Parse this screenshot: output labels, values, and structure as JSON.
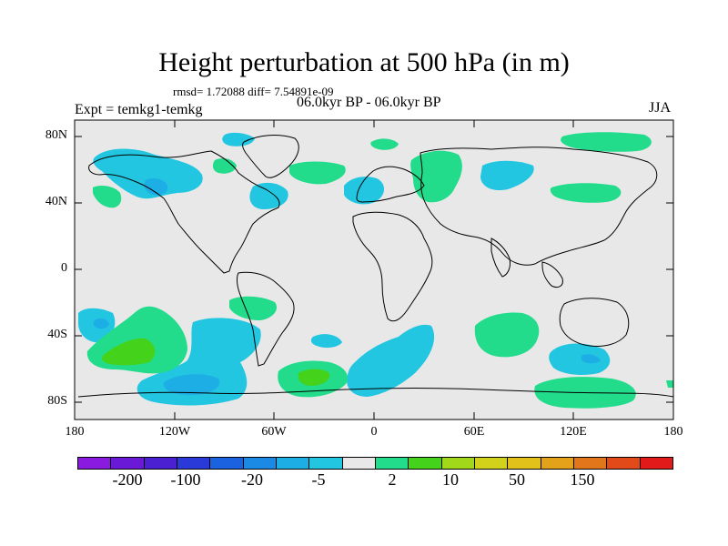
{
  "title": "Height perturbation at 500 hPa (in m)",
  "stats": "rmsd= 1.72088 diff= 7.54891e-09",
  "period": "06.0kyr BP - 06.0kyr BP",
  "expt": "Expt = temkg1-temkg",
  "season": "JJA",
  "lat_labels": [
    "80N",
    "40N",
    "0",
    "40S",
    "80S"
  ],
  "lon_labels": [
    "180",
    "120W",
    "60W",
    "0",
    "60E",
    "120E",
    "180"
  ],
  "colorbar": {
    "colors": [
      "#8a1adf",
      "#6a1ad6",
      "#4a20d0",
      "#2a3ad8",
      "#1a62e0",
      "#1a8ae4",
      "#1eaee6",
      "#22c6e0",
      "#e8e8e8",
      "#22dc8c",
      "#44d21a",
      "#a2d81a",
      "#d2d21a",
      "#e2c21a",
      "#e4a21a",
      "#e2761a",
      "#e24a1a",
      "#e21a1a"
    ],
    "labels": [
      "-200",
      "-100",
      "-20",
      "-5",
      "2",
      "10",
      "50",
      "150"
    ]
  },
  "palette": {
    "background": "#e8e8e8",
    "negative_light": "#22c6e0",
    "negative_mid": "#1eaee6",
    "positive_light": "#22dc8c",
    "positive_mid": "#44d21a",
    "positive_strong": "#a2d81a"
  }
}
